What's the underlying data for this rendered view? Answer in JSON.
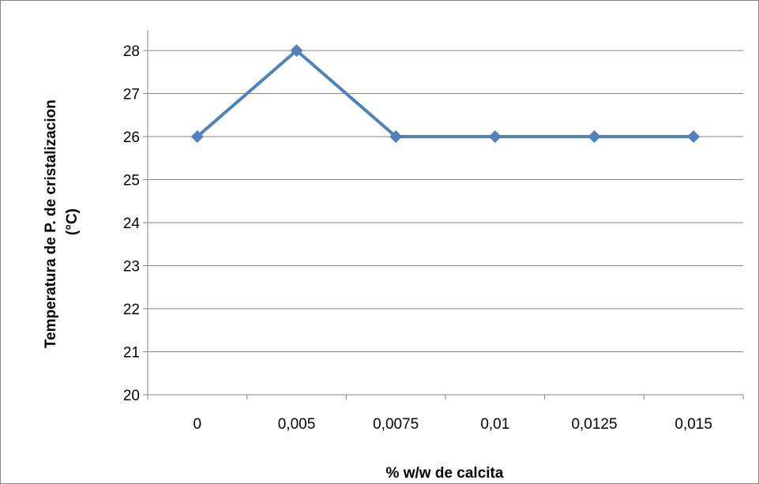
{
  "chart_data": {
    "type": "line",
    "categories": [
      "0",
      "0,005",
      "0,0075",
      "0,01",
      "0,0125",
      "0,015"
    ],
    "series": [
      {
        "values": [
          26,
          28,
          26,
          26,
          26,
          26
        ],
        "color": "#4F81BD",
        "marker": "diamond"
      }
    ],
    "xlabel": "% w/w de calcita",
    "ylabel": "Temperatura de P. de cristalizacion (°C)",
    "ylabel_lines": [
      "Temperatura de P. de cristalizacion",
      "(°C)"
    ],
    "ylim": [
      20,
      28
    ],
    "yticks": [
      "20",
      "21",
      "22",
      "23",
      "24",
      "25",
      "26",
      "27",
      "28"
    ],
    "grid": true,
    "legend": "none"
  }
}
